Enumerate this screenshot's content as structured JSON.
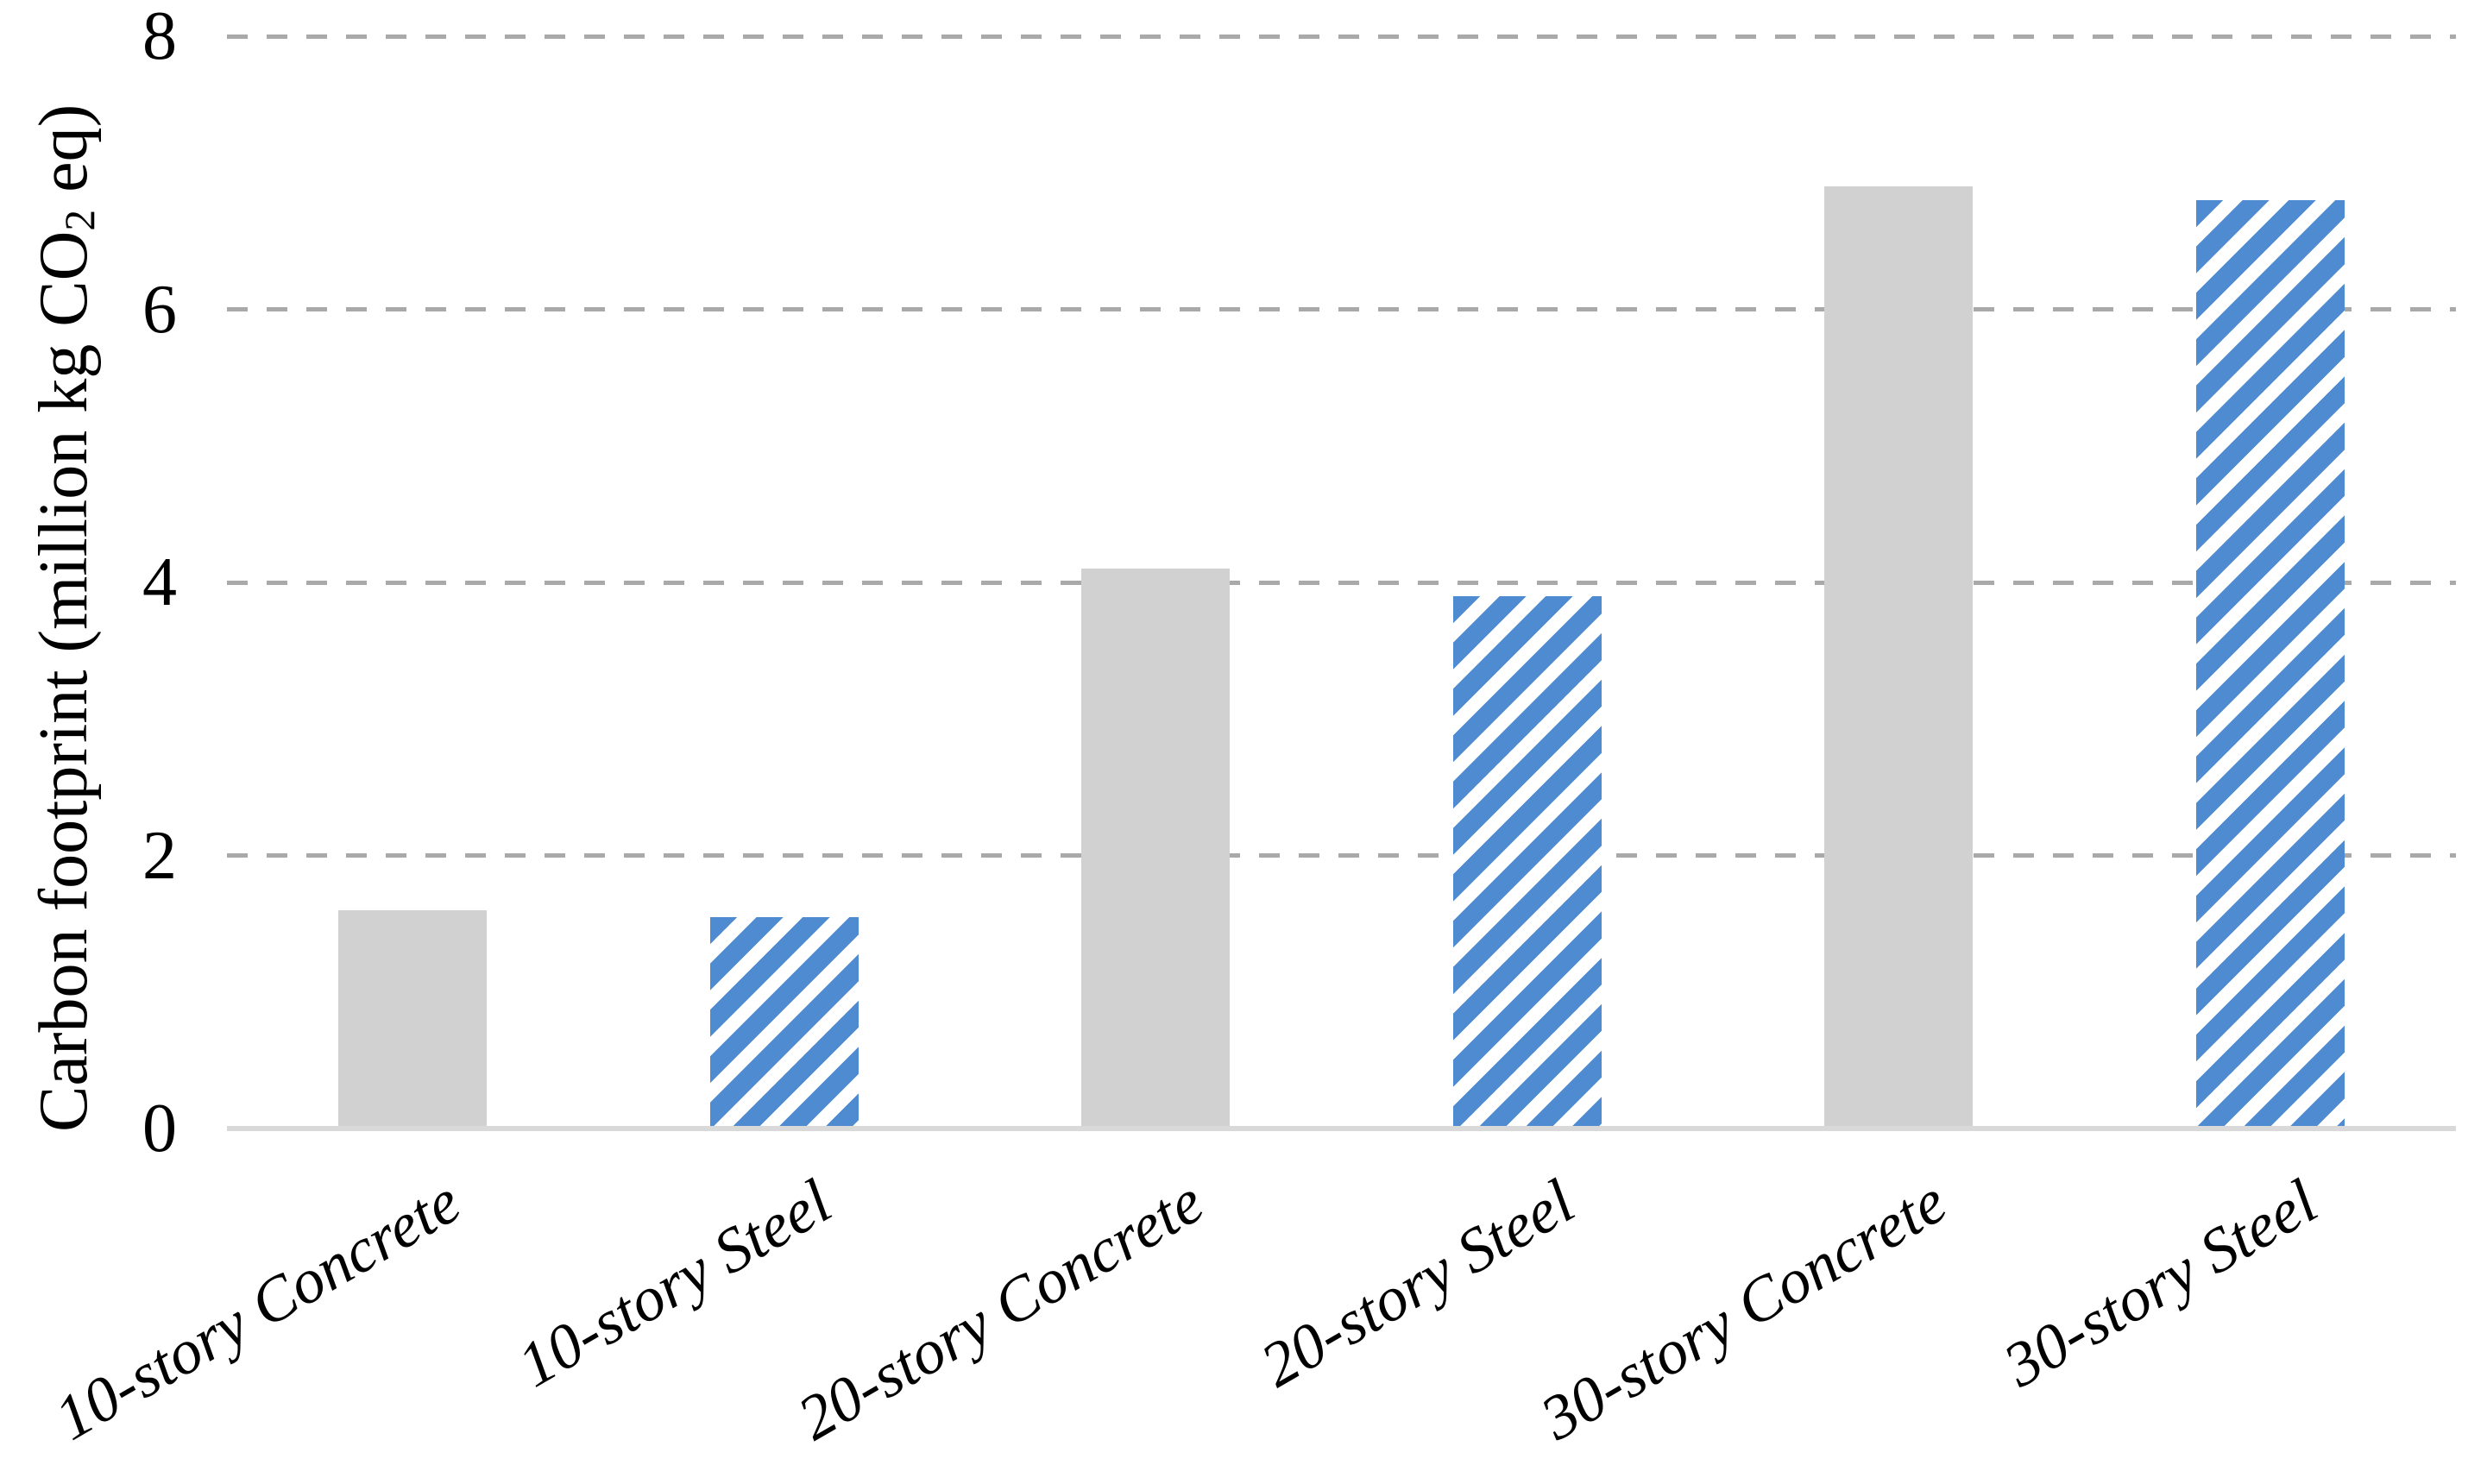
{
  "chart_data": {
    "type": "bar",
    "title": "",
    "xlabel": "",
    "ylabel": "Carbon footprint (million kg CO₂ eq)",
    "ylabel_parts": {
      "pre": "Carbon footprint (million kg CO",
      "sub": "2",
      "post": " eq)"
    },
    "ylim": [
      0,
      8
    ],
    "yticks": [
      0,
      2,
      4,
      6,
      8
    ],
    "gridlines_at": [
      2,
      4,
      6,
      8
    ],
    "gridline_style": "dashed",
    "legend": "none",
    "categories": [
      "10-story Concrete",
      "10-story Steel",
      "20-story Concrete",
      "20-story Steel",
      "30-story Concrete",
      "30-story Steel"
    ],
    "bars": [
      {
        "label": "10-story Concrete",
        "value": 1.6,
        "material": "concrete",
        "fill": "solid"
      },
      {
        "label": "10-story Steel",
        "value": 1.55,
        "material": "steel",
        "fill": "diagonal-hatch"
      },
      {
        "label": "20-story Concrete",
        "value": 4.1,
        "material": "concrete",
        "fill": "solid"
      },
      {
        "label": "20-story Steel",
        "value": 3.9,
        "material": "steel",
        "fill": "diagonal-hatch"
      },
      {
        "label": "30-story Concrete",
        "value": 6.9,
        "material": "concrete",
        "fill": "solid"
      },
      {
        "label": "30-story Steel",
        "value": 6.8,
        "material": "steel",
        "fill": "diagonal-hatch"
      }
    ],
    "colors": {
      "concrete_fill": "#D1D1D1",
      "steel_hatch_blue": "#4E8BD0",
      "hatch_background": "#FFFFFF",
      "gridline": "#A9A9A9",
      "axis_line": "#D9D9D9",
      "text": "#000000",
      "background": "#FFFFFF"
    },
    "hatch_direction": "bottom-left-to-top-right"
  }
}
